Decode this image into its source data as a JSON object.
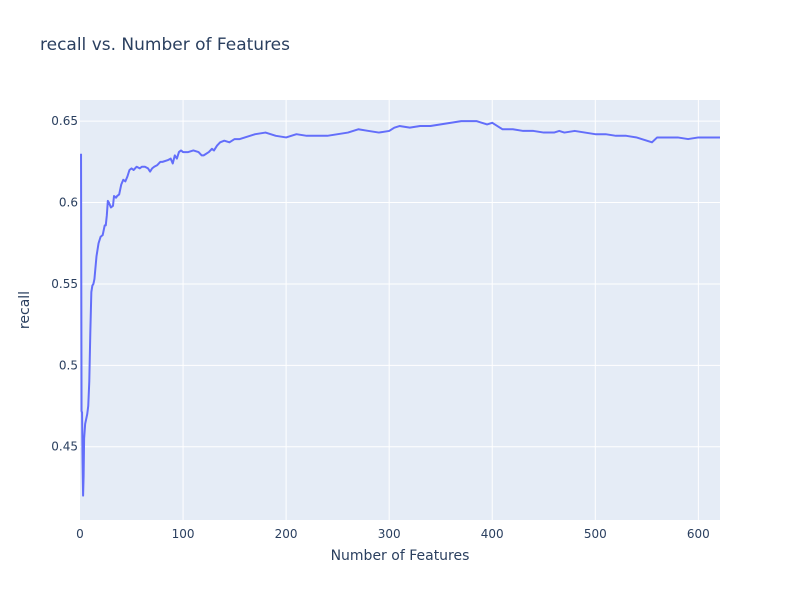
{
  "chart_data": {
    "type": "line",
    "title": "recall vs. Number of Features",
    "xlabel": "Number of Features",
    "ylabel": "recall",
    "xlim": [
      0,
      621
    ],
    "ylim": [
      0.405,
      0.663
    ],
    "xticks": [
      0,
      100,
      200,
      300,
      400,
      500,
      600
    ],
    "xtick_labels": [
      "0",
      "100",
      "200",
      "300",
      "400",
      "500",
      "600"
    ],
    "yticks": [
      0.45,
      0.5,
      0.55,
      0.6,
      0.65
    ],
    "ytick_labels": [
      "0.45",
      "0.5",
      "0.55",
      "0.6",
      "0.65"
    ],
    "grid": true,
    "colors": {
      "line": "#636efa",
      "plot_bg": "#e5ecf6",
      "grid": "#ffffff",
      "text": "#2a3f5f"
    },
    "series": [
      {
        "name": "recall",
        "x": [
          1,
          1.5,
          2,
          2.5,
          3,
          3.5,
          4,
          5,
          6,
          7,
          8,
          9,
          10,
          11,
          12,
          13,
          14,
          15,
          16,
          18,
          20,
          22,
          24,
          25,
          26,
          27,
          28,
          30,
          32,
          33,
          35,
          36,
          38,
          40,
          42,
          44,
          46,
          48,
          50,
          52,
          55,
          58,
          60,
          63,
          66,
          68,
          70,
          72,
          75,
          78,
          80,
          85,
          88,
          90,
          92,
          94,
          96,
          98,
          100,
          105,
          110,
          115,
          118,
          120,
          125,
          128,
          130,
          133,
          136,
          140,
          145,
          150,
          155,
          160,
          170,
          180,
          190,
          200,
          210,
          220,
          230,
          240,
          250,
          260,
          270,
          280,
          290,
          300,
          305,
          310,
          320,
          330,
          340,
          350,
          360,
          370,
          380,
          385,
          390,
          395,
          400,
          405,
          410,
          420,
          430,
          440,
          450,
          460,
          465,
          470,
          480,
          490,
          500,
          510,
          520,
          530,
          540,
          545,
          550,
          555,
          560,
          570,
          580,
          590,
          600,
          610,
          621
        ],
        "y": [
          0.63,
          0.472,
          0.471,
          0.44,
          0.42,
          0.432,
          0.455,
          0.464,
          0.467,
          0.47,
          0.475,
          0.49,
          0.52,
          0.545,
          0.549,
          0.55,
          0.553,
          0.56,
          0.567,
          0.575,
          0.579,
          0.58,
          0.586,
          0.586,
          0.592,
          0.601,
          0.6,
          0.597,
          0.598,
          0.604,
          0.603,
          0.604,
          0.605,
          0.611,
          0.614,
          0.613,
          0.616,
          0.62,
          0.621,
          0.62,
          0.622,
          0.621,
          0.622,
          0.622,
          0.621,
          0.619,
          0.621,
          0.622,
          0.623,
          0.625,
          0.625,
          0.626,
          0.627,
          0.624,
          0.629,
          0.627,
          0.631,
          0.632,
          0.631,
          0.631,
          0.632,
          0.631,
          0.629,
          0.629,
          0.631,
          0.633,
          0.632,
          0.635,
          0.637,
          0.638,
          0.637,
          0.639,
          0.639,
          0.64,
          0.642,
          0.643,
          0.641,
          0.64,
          0.642,
          0.641,
          0.641,
          0.641,
          0.642,
          0.643,
          0.645,
          0.644,
          0.643,
          0.644,
          0.646,
          0.647,
          0.646,
          0.647,
          0.647,
          0.648,
          0.649,
          0.65,
          0.65,
          0.65,
          0.649,
          0.648,
          0.649,
          0.647,
          0.645,
          0.645,
          0.644,
          0.644,
          0.643,
          0.643,
          0.644,
          0.643,
          0.644,
          0.643,
          0.642,
          0.642,
          0.641,
          0.641,
          0.64,
          0.639,
          0.638,
          0.637,
          0.64,
          0.64,
          0.64,
          0.639,
          0.64,
          0.64,
          0.64
        ]
      }
    ]
  }
}
